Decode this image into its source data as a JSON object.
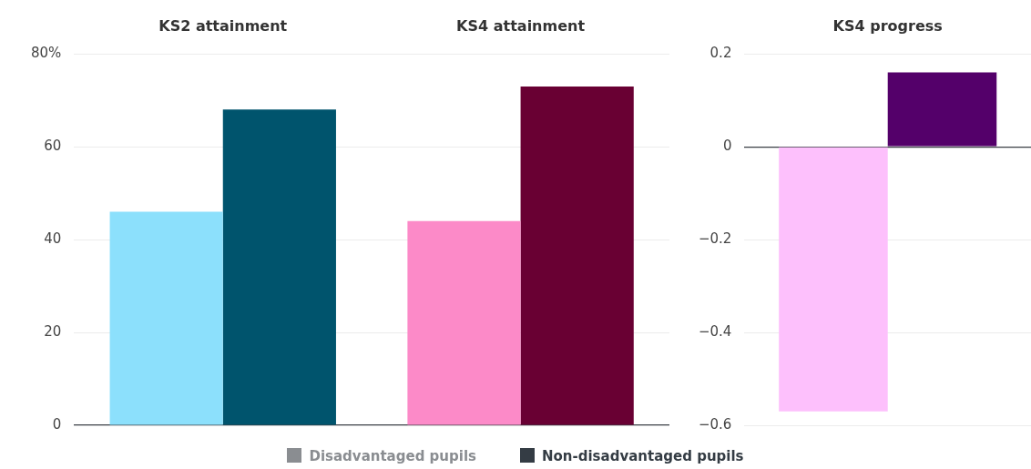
{
  "chart_data": [
    {
      "type": "bar",
      "categories": [
        "KS2 attainment",
        "KS4 attainment"
      ],
      "series": [
        {
          "name": "Disadvantaged pupils",
          "color": "#8a8d91",
          "colors": [
            "#8ce0fc",
            "#fc8ac8"
          ],
          "values": [
            46,
            44
          ]
        },
        {
          "name": "Non-disadvantaged pupils",
          "color": "#343c44",
          "colors": [
            "#00546d",
            "#690033"
          ],
          "values": [
            68,
            73
          ]
        }
      ],
      "ylim": [
        0,
        80
      ],
      "yticks": [
        0,
        20,
        40,
        60,
        {
          "value": 80,
          "label": "80%"
        }
      ],
      "grid": "y",
      "legend": "bottom"
    },
    {
      "type": "bar",
      "categories": [
        "KS4 progress"
      ],
      "series": [
        {
          "colors": [
            "#fdc0fc"
          ],
          "values": [
            -0.57
          ]
        },
        {
          "colors": [
            "#54006a"
          ],
          "values": [
            0.16
          ]
        }
      ],
      "ylim": [
        -0.6,
        0.2
      ],
      "yticks": [
        {
          "value": -0.6,
          "label": "−0.6"
        },
        {
          "value": -0.4,
          "label": "−0.4"
        },
        {
          "value": -0.2,
          "label": "−0.2"
        },
        0,
        0.2
      ],
      "grid": "y"
    }
  ]
}
